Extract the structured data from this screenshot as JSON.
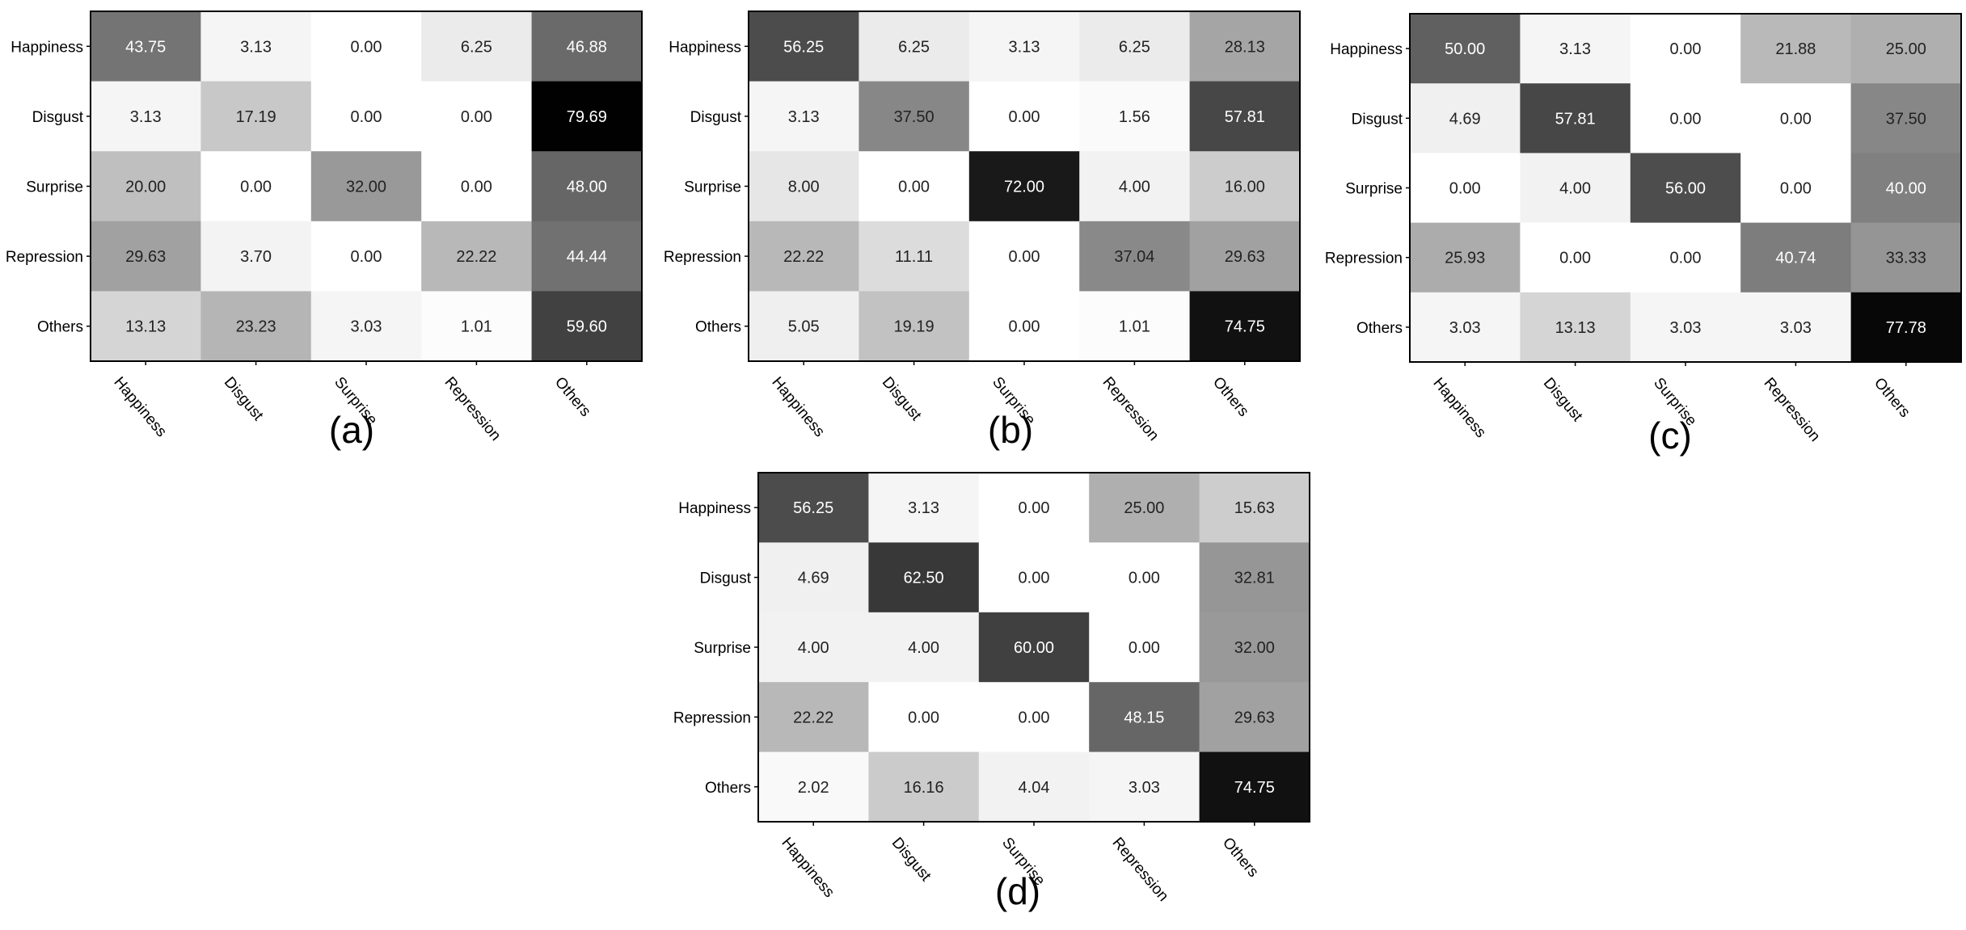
{
  "chart_data": [
    {
      "type": "heatmap",
      "panel_label": "(a)",
      "rows": [
        "Happiness",
        "Disgust",
        "Surprise",
        "Repression",
        "Others"
      ],
      "columns": [
        "Happiness",
        "Disgust",
        "Surprise",
        "Repression",
        "Others"
      ],
      "values": [
        [
          "43.75",
          "3.13",
          "0.00",
          "6.25",
          "46.88"
        ],
        [
          "3.13",
          "17.19",
          "0.00",
          "0.00",
          "79.69"
        ],
        [
          "20.00",
          "0.00",
          "32.00",
          "0.00",
          "48.00"
        ],
        [
          "29.63",
          "3.70",
          "0.00",
          "22.22",
          "44.44"
        ],
        [
          "13.13",
          "23.23",
          "3.03",
          "1.01",
          "59.60"
        ]
      ],
      "colormap": "gray (white = low, black = high)"
    },
    {
      "type": "heatmap",
      "panel_label": "(b)",
      "rows": [
        "Happiness",
        "Disgust",
        "Surprise",
        "Repression",
        "Others"
      ],
      "columns": [
        "Happiness",
        "Disgust",
        "Surprise",
        "Repression",
        "Others"
      ],
      "values": [
        [
          "56.25",
          "6.25",
          "3.13",
          "6.25",
          "28.13"
        ],
        [
          "3.13",
          "37.50",
          "0.00",
          "1.56",
          "57.81"
        ],
        [
          "8.00",
          "0.00",
          "72.00",
          "4.00",
          "16.00"
        ],
        [
          "22.22",
          "11.11",
          "0.00",
          "37.04",
          "29.63"
        ],
        [
          "5.05",
          "19.19",
          "0.00",
          "1.01",
          "74.75"
        ]
      ],
      "colormap": "gray (white = low, black = high)"
    },
    {
      "type": "heatmap",
      "panel_label": "(c)",
      "rows": [
        "Happiness",
        "Disgust",
        "Surprise",
        "Repression",
        "Others"
      ],
      "columns": [
        "Happiness",
        "Disgust",
        "Surprise",
        "Repression",
        "Others"
      ],
      "values": [
        [
          "50.00",
          "3.13",
          "0.00",
          "21.88",
          "25.00"
        ],
        [
          "4.69",
          "57.81",
          "0.00",
          "0.00",
          "37.50"
        ],
        [
          "0.00",
          "4.00",
          "56.00",
          "0.00",
          "40.00"
        ],
        [
          "25.93",
          "0.00",
          "0.00",
          "40.74",
          "33.33"
        ],
        [
          "3.03",
          "13.13",
          "3.03",
          "3.03",
          "77.78"
        ]
      ],
      "colormap": "gray (white = low, black = high)"
    },
    {
      "type": "heatmap",
      "panel_label": "(d)",
      "rows": [
        "Happiness",
        "Disgust",
        "Surprise",
        "Repression",
        "Others"
      ],
      "columns": [
        "Happiness",
        "Disgust",
        "Surprise",
        "Repression",
        "Others"
      ],
      "values": [
        [
          "56.25",
          "3.13",
          "0.00",
          "25.00",
          "15.63"
        ],
        [
          "4.69",
          "62.50",
          "0.00",
          "0.00",
          "32.81"
        ],
        [
          "4.00",
          "4.00",
          "60.00",
          "0.00",
          "32.00"
        ],
        [
          "22.22",
          "0.00",
          "0.00",
          "48.15",
          "29.63"
        ],
        [
          "2.02",
          "16.16",
          "4.04",
          "3.03",
          "74.75"
        ]
      ],
      "colormap": "gray (white = low, black = high)"
    }
  ]
}
